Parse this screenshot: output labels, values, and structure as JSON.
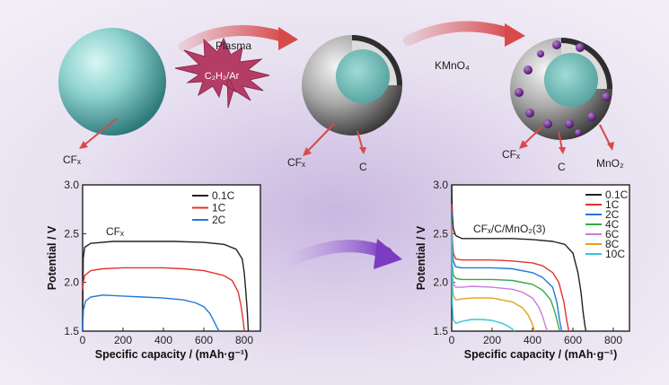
{
  "schematic": {
    "plasma_label": "Plasma",
    "gas_label": "C₂H₂/Ar",
    "kmno4_label": "KMnO₄",
    "labels": {
      "cfx_1": "CFₓ",
      "cfx_2": "CFₓ",
      "c_2": "C",
      "cfx_3": "CFₓ",
      "c_3": "C",
      "mno2_3": "MnO₂"
    },
    "colors": {
      "core": "#8fd3cf",
      "shell": "#9a9a9a",
      "arrow": "#d84a4a",
      "dot": "#6a2a8c",
      "burst": "#b43d66"
    }
  },
  "chart_data": [
    {
      "type": "line",
      "annotation": "CFₓ",
      "xlabel": "Specific capacity / (mAh·g⁻¹)",
      "ylabel": "Potential / V",
      "xlim": [
        0,
        880
      ],
      "ylim": [
        1.5,
        3.0
      ],
      "xticks": [
        0,
        200,
        400,
        600,
        800
      ],
      "yticks": [
        1.5,
        2.0,
        2.5,
        3.0
      ],
      "legend_position": "top-right",
      "series": [
        {
          "name": "0.1C",
          "color": "#222222",
          "x": [
            0,
            3,
            10,
            40,
            150,
            300,
            450,
            600,
            700,
            760,
            790,
            800,
            808,
            815,
            820
          ],
          "y": [
            1.5,
            2.25,
            2.36,
            2.4,
            2.42,
            2.42,
            2.42,
            2.41,
            2.39,
            2.34,
            2.24,
            2.1,
            1.9,
            1.7,
            1.5
          ]
        },
        {
          "name": "1C",
          "color": "#e0342f",
          "x": [
            0,
            3,
            10,
            40,
            100,
            200,
            300,
            400,
            500,
            600,
            700,
            740,
            770,
            785,
            795,
            800
          ],
          "y": [
            1.92,
            2.0,
            2.07,
            2.12,
            2.14,
            2.15,
            2.15,
            2.15,
            2.14,
            2.12,
            2.07,
            2.02,
            1.9,
            1.75,
            1.6,
            1.5
          ]
        },
        {
          "name": "2C",
          "color": "#2277dd",
          "x": [
            0,
            4,
            15,
            40,
            100,
            200,
            300,
            400,
            500,
            560,
            600,
            630,
            650,
            665,
            675
          ],
          "y": [
            1.5,
            1.72,
            1.81,
            1.85,
            1.87,
            1.86,
            1.85,
            1.84,
            1.82,
            1.79,
            1.75,
            1.68,
            1.6,
            1.54,
            1.5
          ]
        }
      ]
    },
    {
      "type": "line",
      "annotation": "CFₓ/C/MnO₂(3)",
      "xlabel": "Specific capacity / (mAh·g⁻¹)",
      "ylabel": "Potential / V",
      "xlim": [
        0,
        880
      ],
      "ylim": [
        1.5,
        3.0
      ],
      "xticks": [
        0,
        200,
        400,
        600,
        800
      ],
      "yticks": [
        1.5,
        2.0,
        2.5,
        3.0
      ],
      "legend_position": "top-right",
      "series": [
        {
          "name": "0.1C",
          "color": "#222222",
          "x": [
            0,
            3,
            8,
            20,
            50,
            100,
            200,
            300,
            400,
            500,
            560,
            600,
            625,
            640,
            650,
            660,
            665
          ],
          "y": [
            3.0,
            2.7,
            2.55,
            2.48,
            2.45,
            2.45,
            2.45,
            2.45,
            2.44,
            2.42,
            2.39,
            2.3,
            2.1,
            1.9,
            1.7,
            1.55,
            1.5
          ]
        },
        {
          "name": "1C",
          "color": "#e0342f",
          "x": [
            0,
            3,
            8,
            20,
            50,
            100,
            200,
            300,
            400,
            450,
            500,
            530,
            555,
            570,
            580
          ],
          "y": [
            2.8,
            2.45,
            2.3,
            2.24,
            2.23,
            2.23,
            2.23,
            2.22,
            2.2,
            2.17,
            2.1,
            2.0,
            1.8,
            1.6,
            1.5
          ]
        },
        {
          "name": "2C",
          "color": "#2277dd",
          "x": [
            0,
            3,
            8,
            20,
            50,
            100,
            200,
            300,
            400,
            450,
            500,
            520,
            535,
            545
          ],
          "y": [
            2.72,
            2.35,
            2.22,
            2.16,
            2.15,
            2.15,
            2.15,
            2.14,
            2.1,
            2.05,
            1.95,
            1.8,
            1.6,
            1.5
          ]
        },
        {
          "name": "4C",
          "color": "#33aa44",
          "x": [
            0,
            3,
            8,
            20,
            50,
            100,
            200,
            300,
            400,
            450,
            490,
            510,
            525,
            535
          ],
          "y": [
            2.65,
            2.2,
            2.08,
            2.04,
            2.03,
            2.03,
            2.03,
            2.02,
            1.98,
            1.92,
            1.82,
            1.7,
            1.58,
            1.5
          ]
        },
        {
          "name": "6C",
          "color": "#c77dd8",
          "x": [
            0,
            3,
            8,
            20,
            50,
            100,
            200,
            300,
            350,
            400,
            430,
            450,
            465,
            475
          ],
          "y": [
            2.6,
            2.1,
            1.98,
            1.95,
            1.95,
            1.96,
            1.95,
            1.93,
            1.9,
            1.84,
            1.75,
            1.65,
            1.55,
            1.5
          ]
        },
        {
          "name": "8C",
          "color": "#e3a020",
          "x": [
            0,
            3,
            8,
            20,
            50,
            100,
            200,
            300,
            350,
            380,
            400,
            410
          ],
          "y": [
            2.55,
            2.0,
            1.87,
            1.82,
            1.83,
            1.84,
            1.84,
            1.8,
            1.74,
            1.66,
            1.57,
            1.5
          ]
        },
        {
          "name": "10C",
          "color": "#33c7d8",
          "x": [
            0,
            3,
            8,
            20,
            50,
            100,
            150,
            200,
            250,
            280,
            300,
            310
          ],
          "y": [
            2.5,
            1.78,
            1.62,
            1.58,
            1.6,
            1.62,
            1.62,
            1.61,
            1.58,
            1.55,
            1.52,
            1.5
          ]
        }
      ]
    }
  ]
}
